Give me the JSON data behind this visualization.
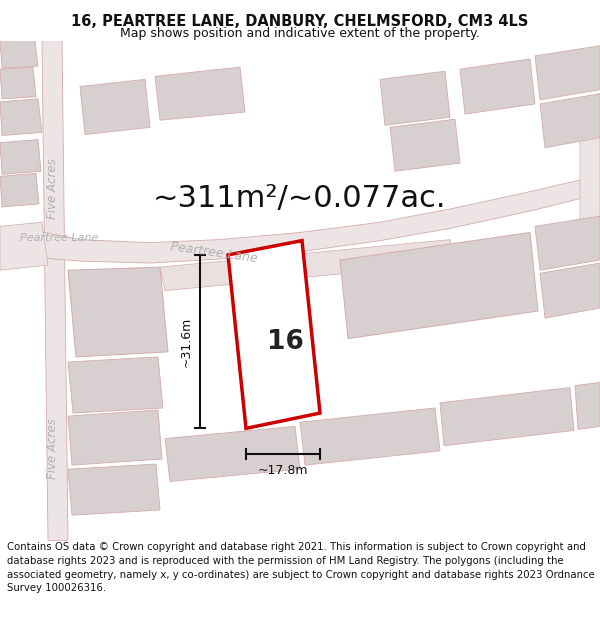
{
  "title_line1": "16, PEARTREE LANE, DANBURY, CHELMSFORD, CM3 4LS",
  "title_line2": "Map shows position and indicative extent of the property.",
  "area_text": "~311m²/~0.077ac.",
  "number_label": "16",
  "dim_width": "~17.8m",
  "dim_height": "~31.6m",
  "road_label_upper": "Peartree Lane",
  "road_label_main": "Peartree Lane",
  "side_label_upper": "Five Acres",
  "side_label_lower": "Five Acres",
  "footer_text": "Contains OS data © Crown copyright and database right 2021. This information is subject to Crown copyright and database rights 2023 and is reproduced with the permission of HM Land Registry. The polygons (including the associated geometry, namely x, y co-ordinates) are subject to Crown copyright and database rights 2023 Ordnance Survey 100026316.",
  "bg_color": "#ffffff",
  "map_bg": "#f7f2f2",
  "plot_fill": "#ffffff",
  "plot_edge": "#cc0000",
  "road_fill": "#ede5e5",
  "building_fill": "#d8d0d0",
  "road_edge_color": "#d4aaaa",
  "dim_color": "#111111",
  "label_color": "#b0b0b0",
  "title_fontsize": 10.5,
  "subtitle_fontsize": 9.0,
  "area_fontsize": 22,
  "footer_fontsize": 7.3,
  "number_fontsize": 19
}
